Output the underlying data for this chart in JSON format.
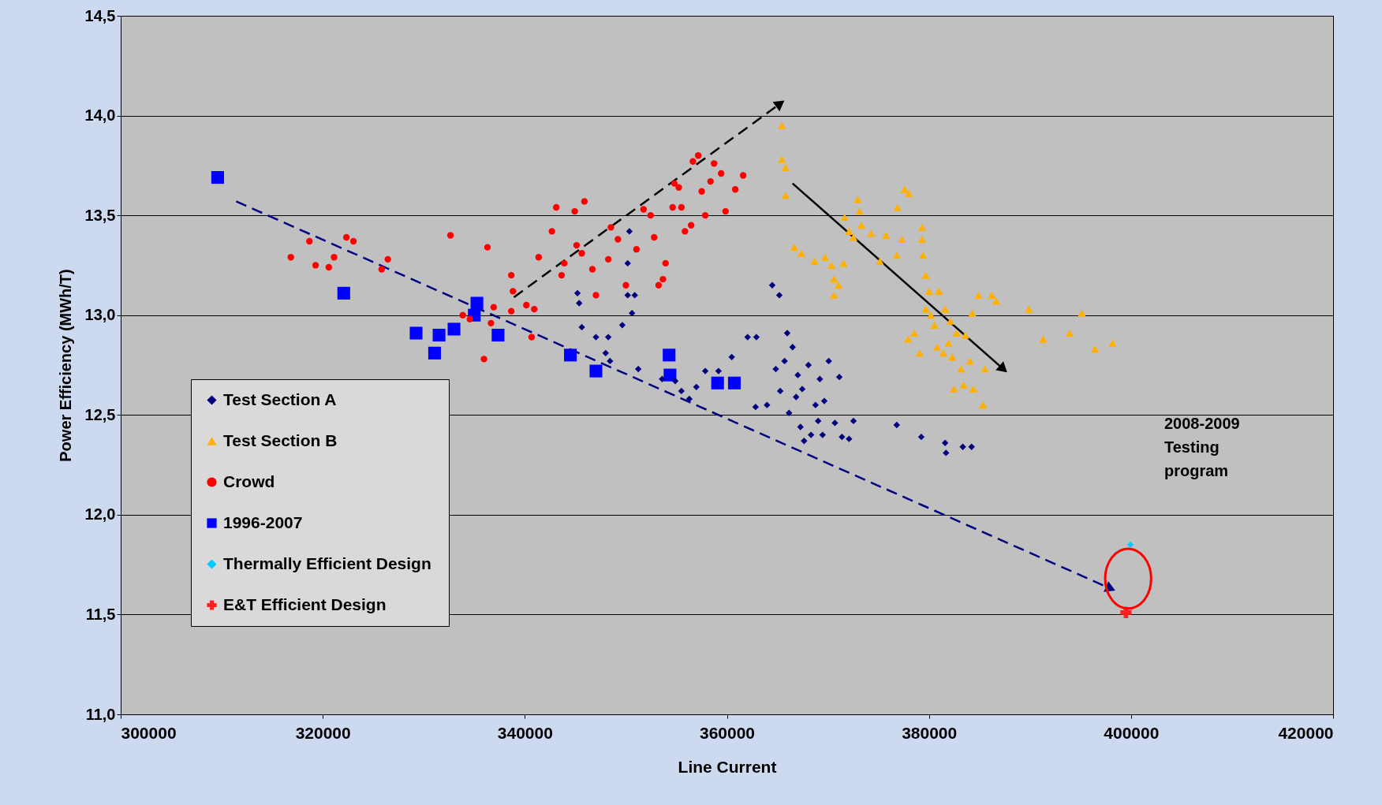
{
  "chart_data": {
    "type": "scatter",
    "xlabel": "Line Current",
    "ylabel": "Power Efficiency (MWh/T)",
    "xlim": [
      300000,
      420000
    ],
    "xticks": [
      300000,
      320000,
      340000,
      360000,
      380000,
      400000,
      420000
    ],
    "ylim": [
      11.0,
      14.5
    ],
    "yticks": [
      {
        "value": 11.0,
        "label": "11,0"
      },
      {
        "value": 11.5,
        "label": "11,5"
      },
      {
        "value": 12.0,
        "label": "12,0"
      },
      {
        "value": 12.5,
        "label": "12,5"
      },
      {
        "value": 13.0,
        "label": "13,0"
      },
      {
        "value": 13.5,
        "label": "13,5"
      },
      {
        "value": 14.0,
        "label": "14,0"
      },
      {
        "value": 14.5,
        "label": "14,5"
      }
    ],
    "grid": "y",
    "legend": "bottom left",
    "annotations": [
      "2008-2009\nTesting\nprogram"
    ],
    "series": [
      {
        "name": "Test Section A",
        "marker": "diamond",
        "color": "#000080",
        "x": [
          350350,
          350180,
          350180,
          345210,
          345380,
          345640,
          347040,
          348260,
          348000,
          348430,
          349650,
          350610,
          350880,
          351230,
          353590,
          354890,
          355500,
          356280,
          356980,
          357860,
          359170,
          360480,
          362050,
          362920,
          362840,
          363970,
          364490,
          365190,
          364840,
          365280,
          365710,
          365970,
          366150,
          366500,
          366850,
          367020,
          367460,
          367280,
          367640,
          368070,
          368330,
          368770,
          369030,
          369200,
          369470,
          369640,
          370080,
          370690,
          371130,
          371390,
          372090,
          372530,
          376810,
          379240,
          381600,
          381690,
          383350,
          384220
        ],
        "values": [
          13.42,
          13.26,
          13.1,
          13.11,
          13.06,
          12.94,
          12.89,
          12.89,
          12.81,
          12.77,
          12.95,
          13.01,
          13.1,
          12.73,
          12.68,
          12.67,
          12.62,
          12.58,
          12.64,
          12.72,
          12.72,
          12.79,
          12.89,
          12.89,
          12.54,
          12.55,
          13.15,
          13.1,
          12.73,
          12.62,
          12.77,
          12.91,
          12.51,
          12.84,
          12.59,
          12.7,
          12.63,
          12.44,
          12.37,
          12.75,
          12.4,
          12.55,
          12.47,
          12.68,
          12.4,
          12.57,
          12.77,
          12.46,
          12.69,
          12.39,
          12.38,
          12.47,
          12.45,
          12.39,
          12.36,
          12.31,
          12.34,
          12.34
        ]
      },
      {
        "name": "Test Section B",
        "marker": "triangle",
        "color": "#ffb000",
        "x": [
          365450,
          365450,
          365800,
          365800,
          366670,
          367370,
          368680,
          369720,
          370340,
          370600,
          370600,
          371040,
          371560,
          371650,
          372090,
          372520,
          372960,
          373130,
          373310,
          374270,
          375140,
          375750,
          376810,
          377330,
          376900,
          377580,
          378020,
          377930,
          378540,
          379070,
          379330,
          379330,
          379410,
          379680,
          379680,
          380020,
          380200,
          380550,
          380810,
          380980,
          381420,
          381600,
          381940,
          382120,
          382290,
          382470,
          382730,
          383170,
          383430,
          383600,
          384040,
          384300,
          384390,
          384910,
          385350,
          385520,
          386220,
          386660,
          389890,
          391290,
          393910,
          395130,
          396440,
          398180
        ],
        "values": [
          13.95,
          13.78,
          13.74,
          13.6,
          13.34,
          13.31,
          13.27,
          13.29,
          13.25,
          13.18,
          13.1,
          13.15,
          13.26,
          13.49,
          13.42,
          13.39,
          13.58,
          13.52,
          13.45,
          13.41,
          13.27,
          13.4,
          13.3,
          13.38,
          13.54,
          13.63,
          13.61,
          12.88,
          12.91,
          12.81,
          13.44,
          13.38,
          13.3,
          13.2,
          13.03,
          13.12,
          13.0,
          12.95,
          12.84,
          13.12,
          12.81,
          13.03,
          12.86,
          12.97,
          12.79,
          12.63,
          12.91,
          12.73,
          12.65,
          12.9,
          12.77,
          13.01,
          12.63,
          13.1,
          12.55,
          12.73,
          13.1,
          13.07,
          13.03,
          12.88,
          12.91,
          13.01,
          12.83,
          12.86
        ]
      },
      {
        "name": "Crowd",
        "marker": "circle",
        "color": "#ff0000",
        "x": [
          316840,
          318680,
          319290,
          320600,
          321120,
          322340,
          323040,
          325830,
          326440,
          332640,
          336300,
          335960,
          333860,
          334560,
          336920,
          336650,
          338660,
          338830,
          338660,
          340150,
          340670,
          340930,
          341370,
          342680,
          343110,
          343640,
          343900,
          344940,
          345120,
          345640,
          345900,
          346690,
          347040,
          348260,
          348520,
          349220,
          350000,
          351050,
          351750,
          352450,
          352800,
          353240,
          353670,
          353930,
          354630,
          354800,
          355240,
          355500,
          355850,
          356460,
          356640,
          357160,
          357510,
          357860,
          358380,
          358730,
          359430,
          359870,
          360830,
          361610
        ],
        "values": [
          13.29,
          13.37,
          13.25,
          13.24,
          13.29,
          13.39,
          13.37,
          13.23,
          13.28,
          13.4,
          13.34,
          12.78,
          13.0,
          12.98,
          13.04,
          12.96,
          13.2,
          13.12,
          13.02,
          13.05,
          12.89,
          13.03,
          13.29,
          13.42,
          13.54,
          13.2,
          13.26,
          13.52,
          13.35,
          13.31,
          13.57,
          13.23,
          13.1,
          13.28,
          13.44,
          13.38,
          13.15,
          13.33,
          13.53,
          13.5,
          13.39,
          13.15,
          13.18,
          13.26,
          13.54,
          13.66,
          13.64,
          13.54,
          13.42,
          13.45,
          13.77,
          13.8,
          13.62,
          13.5,
          13.67,
          13.76,
          13.71,
          13.52,
          13.63,
          13.7
        ]
      },
      {
        "name": "1996-2007",
        "marker": "square",
        "color": "#0000ff",
        "x": [
          309600,
          322080,
          329240,
          331070,
          331510,
          332990,
          335000,
          335260,
          337350,
          344510,
          347040,
          354280,
          354370,
          359080,
          360740
        ],
        "values": [
          13.69,
          13.11,
          12.91,
          12.81,
          12.9,
          12.93,
          13.0,
          13.06,
          12.9,
          12.8,
          12.72,
          12.8,
          12.7,
          12.66,
          12.66
        ]
      },
      {
        "name": "Thermally  Efficient Design",
        "marker": "diamond",
        "color": "#00ccff",
        "x": [
          399930
        ],
        "values": [
          11.85
        ]
      },
      {
        "name": "E&T Efficient Design",
        "marker": "cross",
        "color": "#ff2020",
        "x": [
          399500
        ],
        "values": [
          11.51
        ]
      },
      {
        "type": "line",
        "line_style": "dashed",
        "color": "#000080",
        "x": [
          311430,
          397980
        ],
        "values": [
          13.57,
          11.63
        ]
      },
      {
        "type": "line",
        "line_style": "dashed",
        "color": "#000000",
        "x": [
          338920,
          365280
        ],
        "values": [
          13.09,
          14.06
        ]
      },
      {
        "type": "line",
        "line_style": "solid",
        "color": "#000000",
        "x": [
          366500,
          387360
        ],
        "values": [
          13.66,
          12.73
        ]
      }
    ]
  }
}
